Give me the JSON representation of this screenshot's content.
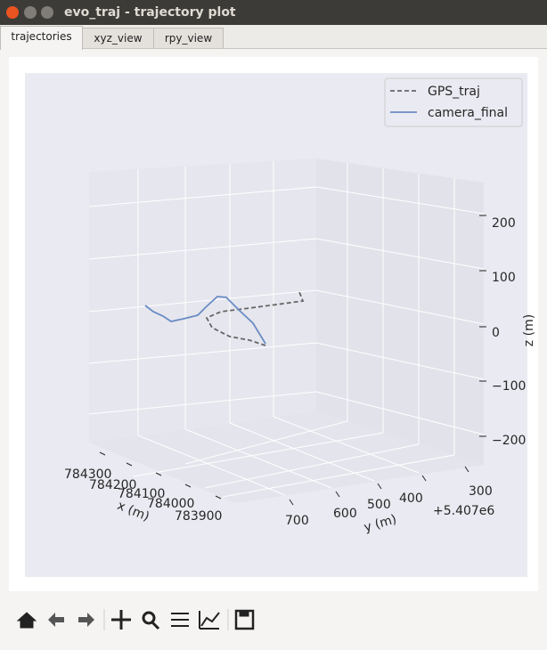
{
  "window": {
    "title": "evo_traj - trajectory plot"
  },
  "tabs": [
    "trajectories",
    "xyz_view",
    "rpy_view"
  ],
  "plot": {
    "legend": [
      "GPS_traj",
      "camera_final"
    ],
    "x_ticks": [
      "784300",
      "784200",
      "784100",
      "784000",
      "783900"
    ],
    "y_ticks": [
      "700",
      "600",
      "500",
      "400",
      "300"
    ],
    "z_ticks": [
      "200",
      "100",
      "0",
      "−100",
      "−200"
    ],
    "x_label": "x (m)",
    "y_label": "y (m)",
    "z_label": "z (m)",
    "y_offset": "+5.407e6"
  }
}
